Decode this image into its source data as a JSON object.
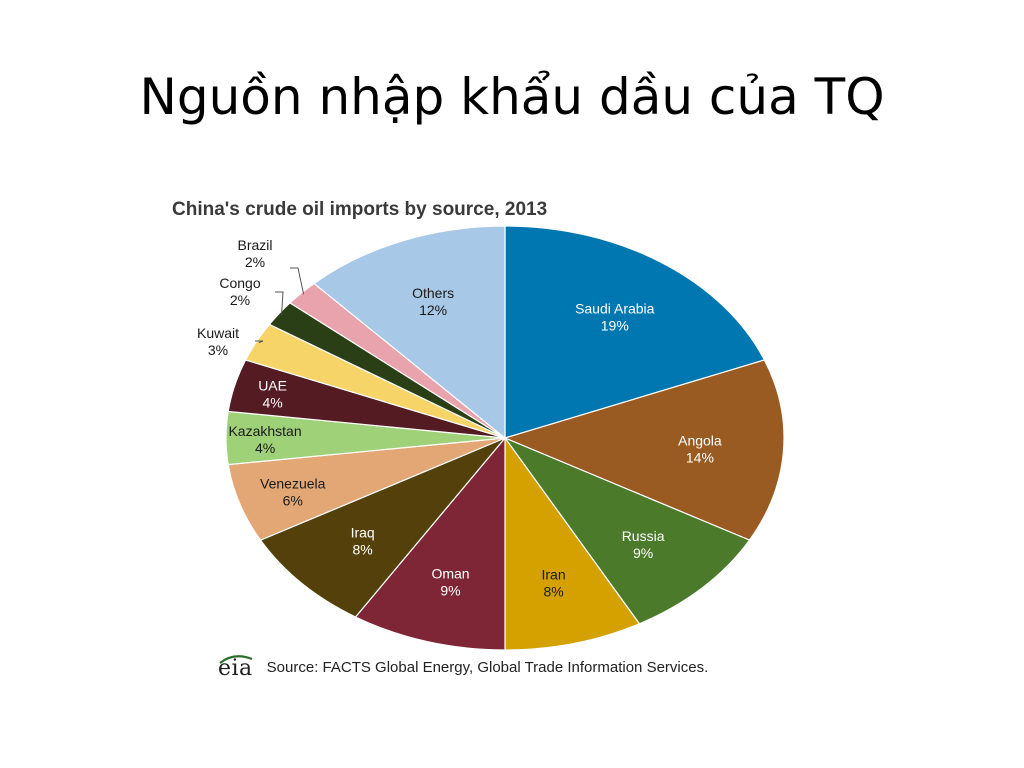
{
  "slide": {
    "title": "Nguồn nhập khẩu dầu của TQ"
  },
  "chart_data": {
    "type": "pie",
    "title": "China's crude oil imports by source, 2013",
    "start_angle_deg": 0,
    "direction": "clockwise",
    "slices": [
      {
        "name": "Saudi Arabia",
        "value": 19,
        "label": "19%",
        "color": "#0077b0",
        "label_color": "#ffffff",
        "label_position": "inside"
      },
      {
        "name": "Angola",
        "value": 14,
        "label": "14%",
        "color": "#9a5b22",
        "label_color": "#ffffff",
        "label_position": "inside"
      },
      {
        "name": "Russia",
        "value": 9,
        "label": "9%",
        "color": "#4a7a2a",
        "label_color": "#ffffff",
        "label_position": "inside"
      },
      {
        "name": "Iran",
        "value": 8,
        "label": "8%",
        "color": "#d4a100",
        "label_color": "#1a1a1a",
        "label_position": "inside"
      },
      {
        "name": "Oman",
        "value": 9,
        "label": "9%",
        "color": "#7f2636",
        "label_color": "#ffffff",
        "label_position": "inside"
      },
      {
        "name": "Iraq",
        "value": 8,
        "label": "8%",
        "color": "#54400a",
        "label_color": "#ffffff",
        "label_position": "inside"
      },
      {
        "name": "Venezuela",
        "value": 6,
        "label": "6%",
        "color": "#e3a775",
        "label_color": "#1a1a1a",
        "label_position": "inside"
      },
      {
        "name": "Kazakhstan",
        "value": 4,
        "label": "4%",
        "color": "#9fd179",
        "label_color": "#1a1a1a",
        "label_position": "inside"
      },
      {
        "name": "UAE",
        "value": 4,
        "label": "4%",
        "color": "#551b23",
        "label_color": "#ffffff",
        "label_position": "inside"
      },
      {
        "name": "Kuwait",
        "value": 3,
        "label": "3%",
        "color": "#f7d468",
        "label_color": "#1a1a1a",
        "label_position": "outside"
      },
      {
        "name": "Congo",
        "value": 2,
        "label": "2%",
        "color": "#2a3f16",
        "label_color": "#1a1a1a",
        "label_position": "outside"
      },
      {
        "name": "Brazil",
        "value": 2,
        "label": "2%",
        "color": "#e8a3ad",
        "label_color": "#1a1a1a",
        "label_position": "outside"
      },
      {
        "name": "Others",
        "value": 12,
        "label": "12%",
        "color": "#a8c8e8",
        "label_color": "#1a1a1a",
        "label_position": "inside"
      }
    ],
    "legend": "none",
    "source": "Source: FACTS Global Energy, Global Trade Information Services.",
    "logo_text": "eia"
  }
}
